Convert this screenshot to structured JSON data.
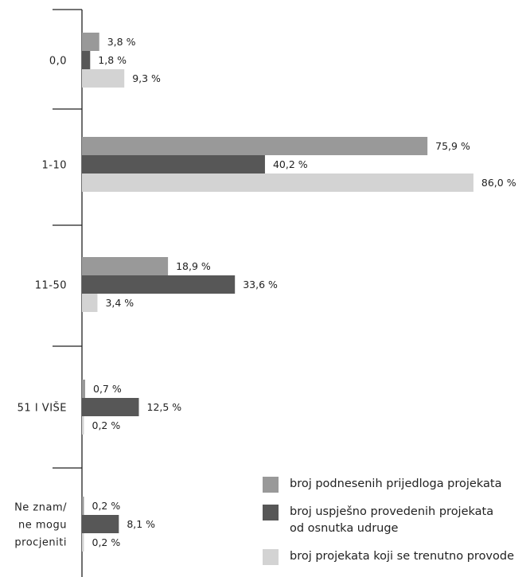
{
  "chart_data": {
    "type": "bar",
    "orientation": "horizontal",
    "title": "",
    "xlabel": "",
    "ylabel": "",
    "xlim": [
      0,
      90
    ],
    "grid": false,
    "legend_position": "bottom-right",
    "categories": [
      "0,0",
      "1-10",
      "11-50",
      "51 I VIŠE",
      "Ne znam/\nne mogu\nprocjeniti"
    ],
    "series": [
      {
        "name": "broj podnesenih prijedloga projekata",
        "color": "#999999",
        "values": [
          3.8,
          75.9,
          18.9,
          0.7,
          0.2
        ],
        "labels": [
          "3,8 %",
          "75,9 %",
          "18,9 %",
          "0,7 %",
          "0,2 %"
        ]
      },
      {
        "name": "broj uspješno provedenih projekata\nod osnutka udruge",
        "color": "#575757",
        "values": [
          1.8,
          40.2,
          33.6,
          12.5,
          8.1
        ],
        "labels": [
          "1,8 %",
          "40,2 %",
          "33,6 %",
          "12,5 %",
          "8,1 %"
        ]
      },
      {
        "name": "broj projekata koji se trenutno provode",
        "color": "#d3d3d3",
        "values": [
          9.3,
          86.0,
          3.4,
          0.2,
          0.2
        ],
        "labels": [
          "9,3 %",
          "86,0 %",
          "3,4 %",
          "0,2 %",
          "0,2 %"
        ]
      }
    ]
  }
}
